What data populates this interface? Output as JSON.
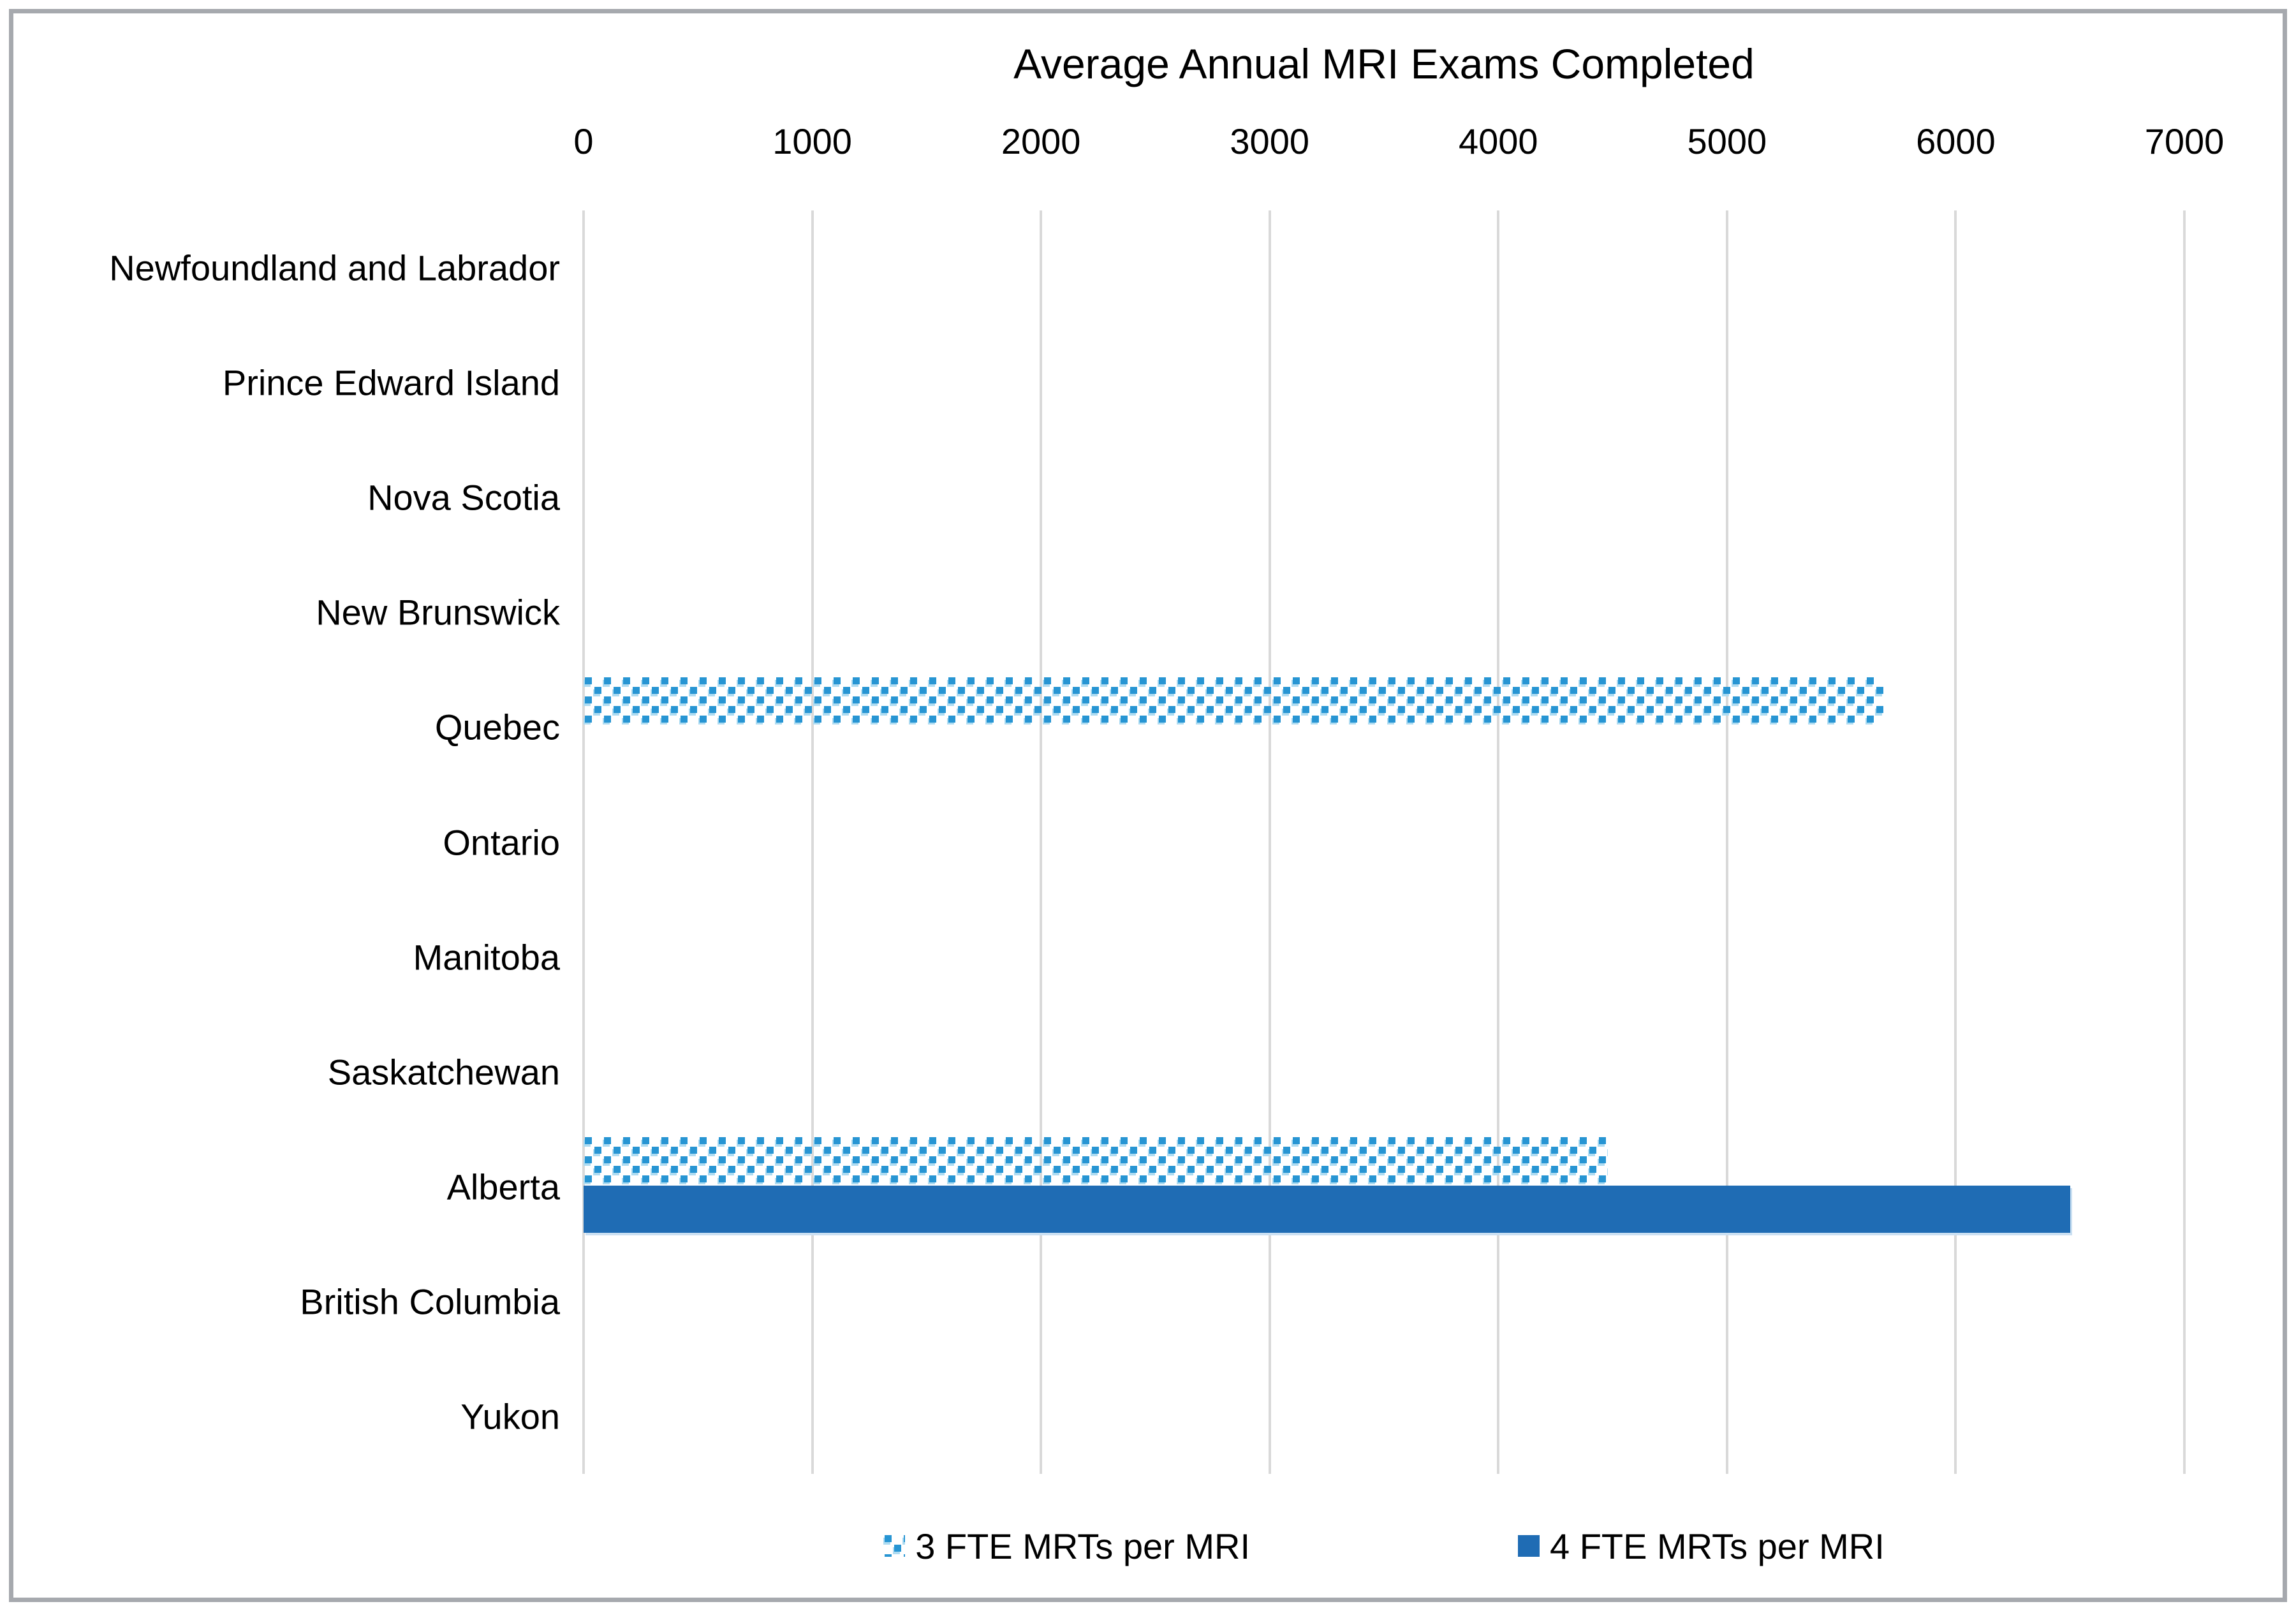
{
  "chart_data": {
    "type": "bar",
    "orientation": "horizontal",
    "title": "Average Annual MRI Exams Completed",
    "categories": [
      "Newfoundland and Labrador",
      "Prince Edward Island",
      "Nova Scotia",
      "New Brunswick",
      "Quebec",
      "Ontario",
      "Manitoba",
      "Saskatchewan",
      "Alberta",
      "British Columbia",
      "Yukon"
    ],
    "series": [
      {
        "name": "3 FTE MRTs per MRI",
        "style": "dotted-pattern",
        "values": [
          null,
          null,
          null,
          null,
          5690,
          null,
          null,
          null,
          4480,
          null,
          null
        ]
      },
      {
        "name": "4 FTE MRTs per MRI",
        "style": "solid",
        "values": [
          null,
          null,
          null,
          null,
          null,
          null,
          null,
          null,
          6500,
          null,
          null
        ]
      }
    ],
    "x_ticks": [
      0,
      1000,
      2000,
      3000,
      4000,
      5000,
      6000,
      7000
    ],
    "xlim": [
      0,
      7000
    ],
    "xlabel": "",
    "ylabel": "",
    "grid": "vertical-only",
    "legend_position": "bottom-center",
    "colors": {
      "solid_bar": "#1F6CB4",
      "solid_bar_edge": "#CBE0F2",
      "pattern_dark": "#2795D3",
      "pattern_light": "#AEDCF2",
      "gridline": "#D9D9D9",
      "text": "#000000",
      "frame_border": "#A6A9AE",
      "background": "#FFFFFF"
    }
  }
}
